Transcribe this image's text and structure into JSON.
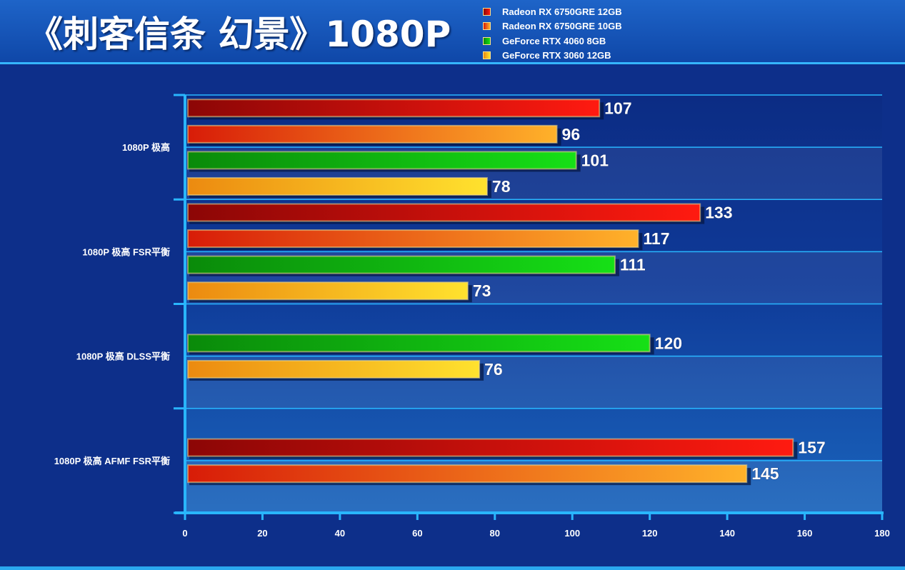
{
  "title": "《刺客信条 幻景》1080P",
  "colors": {
    "background": "#0d2f8a",
    "plot_band_dark": "#0c2c86",
    "plot_band_light": "#1a5db5",
    "axis": "#29b6ff",
    "text": "#ffffff"
  },
  "chart_data": {
    "type": "bar",
    "orientation": "horizontal",
    "title": "《刺客信条 幻景》1080P",
    "categories": [
      "1080P 极高",
      "1080P 极高 FSR平衡",
      "1080P 极高 DLSS平衡",
      "1080P 极高 AFMF FSR平衡"
    ],
    "series": [
      {
        "name": "Radeon RX 6750GRE 12GB",
        "color_start": "#8c0606",
        "color_end": "#ff1a10",
        "values": [
          107,
          133,
          null,
          157
        ]
      },
      {
        "name": "Radeon RX 6750GRE 10GB",
        "color_start": "#d81c08",
        "color_end": "#ffb22a",
        "values": [
          96,
          117,
          null,
          145
        ]
      },
      {
        "name": "GeForce RTX 4060 8GB",
        "color_start": "#0a8a0a",
        "color_end": "#16e016",
        "values": [
          101,
          111,
          120,
          null
        ]
      },
      {
        "name": "GeForce RTX 3060 12GB",
        "color_start": "#ec8a10",
        "color_end": "#ffe22e",
        "values": [
          78,
          73,
          76,
          null
        ]
      }
    ],
    "xlim": [
      0,
      180
    ],
    "xticks": [
      0,
      20,
      40,
      60,
      80,
      100,
      120,
      140,
      160,
      180
    ],
    "legend_position": "top-right",
    "grid": true
  }
}
